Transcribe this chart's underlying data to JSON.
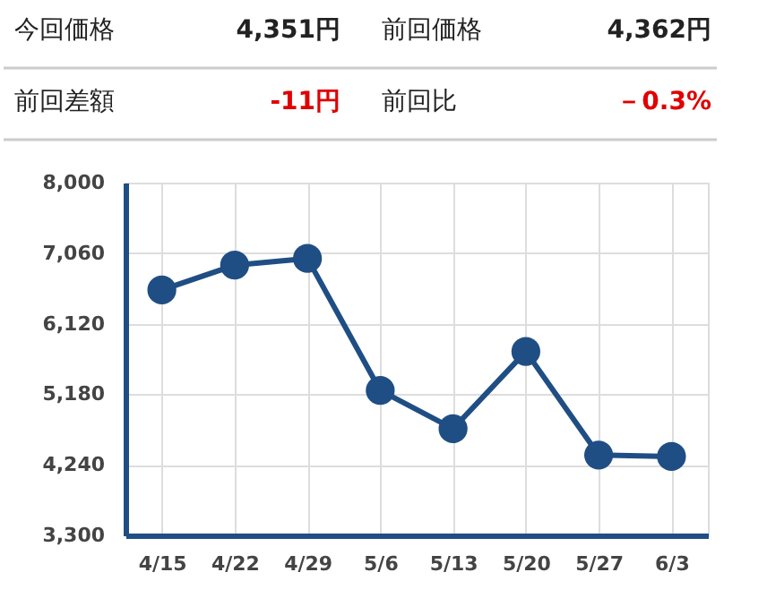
{
  "chart_data": {
    "type": "line",
    "annotations": [
      "今回価格",
      "4,351円",
      "前回価格",
      "4,362円",
      "前回差額",
      "-11円",
      "前回比",
      "－0.3%"
    ],
    "categories": [
      "4/15",
      "4/22",
      "4/29",
      "5/6",
      "5/13",
      "5/20",
      "5/27",
      "6/3"
    ],
    "series": [
      {
        "color": "#1f4e84",
        "values": [
          6570,
          6900,
          6990,
          5230,
          4720,
          5750,
          4370,
          4351
        ]
      }
    ],
    "ylim": [
      3300,
      8000
    ],
    "yticks": [
      {
        "value": 3300,
        "label": "3,300"
      },
      {
        "value": 4240,
        "label": "4,240"
      },
      {
        "value": 5180,
        "label": "5,180"
      },
      {
        "value": 6120,
        "label": "6,120"
      },
      {
        "value": 7060,
        "label": "7,060"
      },
      {
        "value": 8000,
        "label": "8,000"
      }
    ],
    "grid": true,
    "marker": "circle",
    "line_style": "solid",
    "legend": false
  }
}
